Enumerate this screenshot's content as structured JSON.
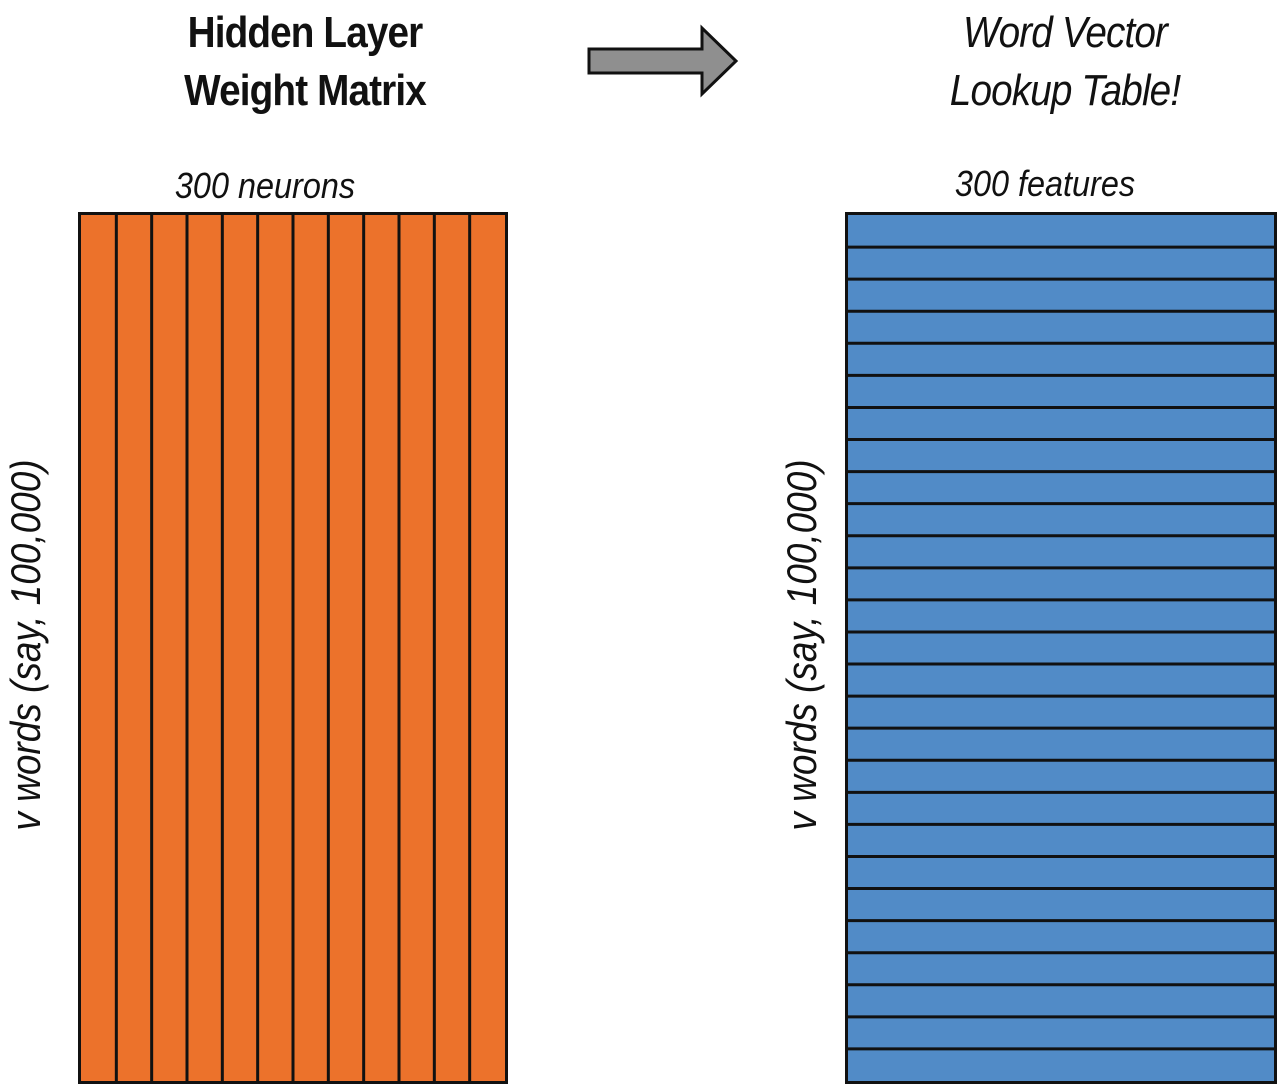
{
  "left_panel": {
    "title_lines": [
      "Hidden Layer",
      "Weight Matrix"
    ],
    "column_label": "300 neurons",
    "row_label": "v words (say, 100,000)",
    "fill_color": "#ec722b",
    "division_count": 12,
    "division_orientation": "vertical"
  },
  "arrow": {
    "fill_color": "#8f8f8f",
    "direction": "right"
  },
  "right_panel": {
    "title_lines": [
      "Word Vector",
      "Lookup Table!"
    ],
    "column_label": "300 features",
    "row_label": "v words (say, 100,000)",
    "fill_color": "#518bc7",
    "division_count": 27,
    "division_orientation": "horizontal"
  }
}
